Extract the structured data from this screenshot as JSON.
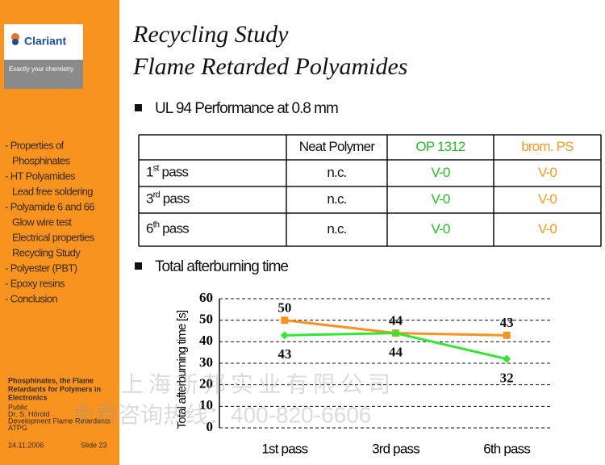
{
  "sidebar": {
    "logo": "Clariant",
    "tagline": "Exactly your chemistry.",
    "nav": [
      {
        "text": "- Properties of",
        "indent": false
      },
      {
        "text": "Phosphinates",
        "indent": true
      },
      {
        "text": "- HT Polyamides",
        "indent": false
      },
      {
        "text": "Lead free soldering",
        "indent": true
      },
      {
        "text": "- Polyamide 6 and 66",
        "indent": false
      },
      {
        "text": "Glow wire test",
        "indent": true
      },
      {
        "text": "Electrical properties",
        "indent": true
      },
      {
        "text": "Recycling Study",
        "indent": true
      },
      {
        "text": "- Polyester (PBT)",
        "indent": false
      },
      {
        "text": "- Epoxy resins",
        "indent": false
      },
      {
        "text": "- Conclusion",
        "indent": false
      }
    ],
    "footer": {
      "title": [
        "Phosphinates, the Flame",
        "Retardants for Polymers in",
        "Electronics"
      ],
      "lines": [
        "Public",
        "Dr. S. Hörold",
        "Development Flame Retardants",
        "ATPG"
      ],
      "date": "24.11.2006",
      "slide": "Slide 23"
    }
  },
  "header": {
    "title": [
      "Recycling Study",
      "Flame Retarded Polyamides"
    ]
  },
  "bullets": [
    "UL 94 Performance at 0.8 mm",
    "Total afterburning time"
  ],
  "table": {
    "header": [
      "Neat Polymer",
      "OP 1312",
      "brom. PS"
    ],
    "rows": [
      {
        "num": "1",
        "sup": "st",
        "rest": " pass",
        "cells": [
          "n.c.",
          "V-0",
          "V-0"
        ]
      },
      {
        "num": "3",
        "sup": "rd",
        "rest": " pass",
        "cells": [
          "n.c.",
          "V-0",
          "V-0"
        ]
      },
      {
        "num": "6",
        "sup": "th",
        "rest": " pass",
        "cells": [
          "n.c.",
          "V-0",
          "V-0"
        ]
      }
    ]
  },
  "watermark": [
    "上海新邦实业有限公司",
    "免费咨询热线：400-820-6606"
  ],
  "chart_data": {
    "type": "line",
    "ylabel": "Total afterburning time [s]",
    "categories": [
      "1st pass",
      "3rd pass",
      "6th pass"
    ],
    "series": [
      {
        "color": "#f7931e",
        "marker": "square",
        "values": [
          50,
          44,
          43
        ]
      },
      {
        "color": "#33e633",
        "marker": "diamond",
        "values": [
          43,
          44,
          32
        ]
      }
    ],
    "ylim": [
      0,
      60
    ],
    "yticks": [
      0,
      10,
      20,
      30,
      40,
      50,
      60
    ],
    "grid": true
  }
}
